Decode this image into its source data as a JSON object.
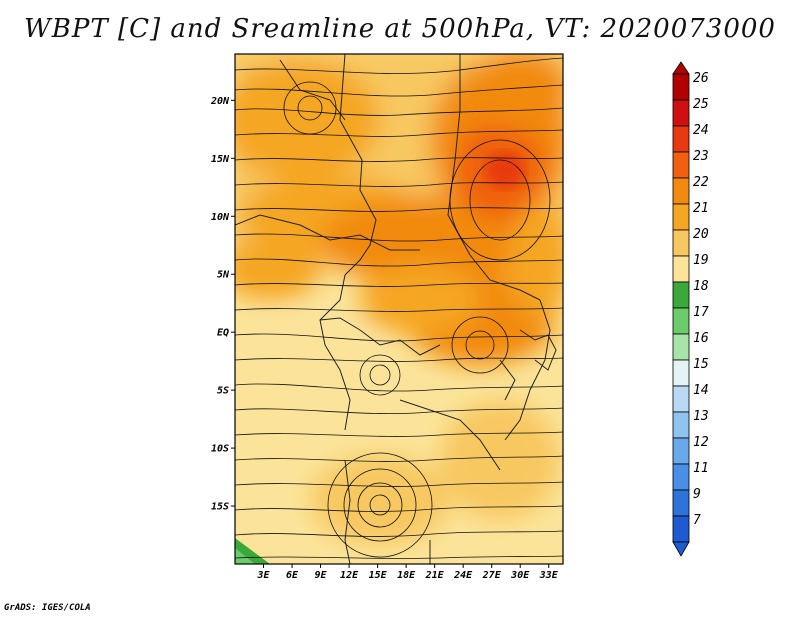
{
  "title": "WBPT [C] and Sreamline at 500hPa, VT: 2020073000",
  "credit": "GrADS: IGES/COLA",
  "map": {
    "lat_labels": [
      "20N",
      "15N",
      "10N",
      "5N",
      "EQ",
      "5S",
      "10S",
      "15S"
    ],
    "lat_values": [
      20,
      15,
      10,
      5,
      0,
      -5,
      -10,
      -15
    ],
    "lon_labels": [
      "3E",
      "6E",
      "9E",
      "12E",
      "15E",
      "18E",
      "21E",
      "24E",
      "27E",
      "30E",
      "33E"
    ],
    "lon_values": [
      3,
      6,
      9,
      12,
      15,
      18,
      21,
      24,
      27,
      30,
      33
    ],
    "lat_range": [
      -20,
      24
    ],
    "lon_range": [
      0,
      34.5
    ]
  },
  "colorbar": {
    "labels": [
      "26",
      "25",
      "24",
      "23",
      "22",
      "21",
      "20",
      "19",
      "18",
      "17",
      "16",
      "15",
      "14",
      "13",
      "12",
      "11",
      "9",
      "7"
    ],
    "colors": [
      "#b00000",
      "#d01010",
      "#e83a10",
      "#f06010",
      "#f28a10",
      "#f5a623",
      "#f8c860",
      "#fbe49a",
      "#3aa83a",
      "#6ccc6c",
      "#a8e4a8",
      "#e4f4f4",
      "#b8daf4",
      "#90c4f0",
      "#6aa8ec",
      "#4a8ee6",
      "#2e72dc",
      "#1e5ad0"
    ]
  }
}
